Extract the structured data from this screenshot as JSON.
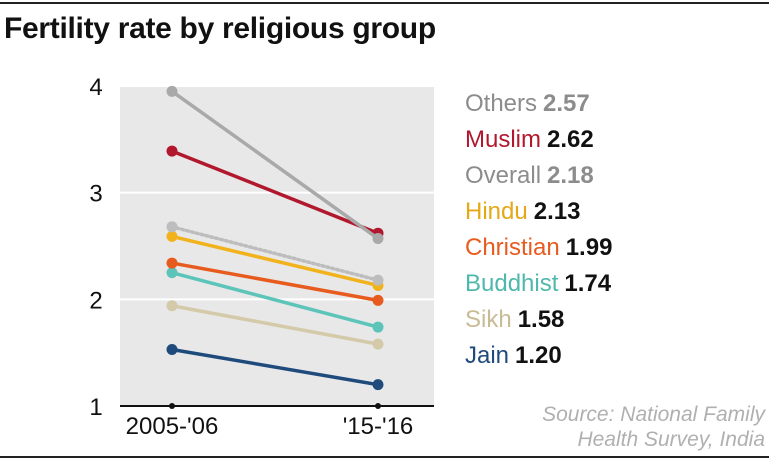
{
  "title": "Fertility rate by religious group",
  "source_lines": [
    "Source: National Family",
    "Health Survey, India"
  ],
  "chart_data": {
    "type": "line",
    "title": "Fertility rate by religious group",
    "xlabel": "",
    "ylabel": "",
    "categories": [
      "2005-'06",
      "'15-'16"
    ],
    "ylim": [
      1,
      4
    ],
    "yticks": [
      "1",
      "2",
      "3",
      "4"
    ],
    "series": [
      {
        "name": "Others",
        "values": [
          3.95,
          2.57
        ],
        "label_value": "2.57",
        "color": "#a9a9a9",
        "label_color": "#8c8c8c",
        "value_color": "#8c8c8c",
        "dashed": false
      },
      {
        "name": "Muslim",
        "values": [
          3.39,
          2.62
        ],
        "label_value": "2.62",
        "color": "#b1182e",
        "label_color": "#b1182e",
        "value_color": "#111111",
        "dashed": false
      },
      {
        "name": "Overall",
        "values": [
          2.68,
          2.18
        ],
        "label_value": "2.18",
        "color": "#bdbdbd",
        "label_color": "#8c8c8c",
        "value_color": "#8c8c8c",
        "dashed": true
      },
      {
        "name": "Hindu",
        "values": [
          2.59,
          2.13
        ],
        "label_value": "2.13",
        "color": "#f2b21c",
        "label_color": "#e6a817",
        "value_color": "#111111",
        "dashed": false
      },
      {
        "name": "Christian",
        "values": [
          2.34,
          1.99
        ],
        "label_value": "1.99",
        "color": "#e85b1e",
        "label_color": "#e85b1e",
        "value_color": "#111111",
        "dashed": false
      },
      {
        "name": "Buddhist",
        "values": [
          2.25,
          1.74
        ],
        "label_value": "1.74",
        "color": "#5cc4b9",
        "label_color": "#4fb8ac",
        "value_color": "#111111",
        "dashed": false
      },
      {
        "name": "Sikh",
        "values": [
          1.94,
          1.58
        ],
        "label_value": "1.58",
        "color": "#d4c9a8",
        "label_color": "#c9bb94",
        "value_color": "#111111",
        "dashed": false
      },
      {
        "name": "Jain",
        "values": [
          1.53,
          1.2
        ],
        "label_value": "1.20",
        "color": "#1f4a7c",
        "label_color": "#1f4a7c",
        "value_color": "#111111",
        "dashed": false
      }
    ]
  }
}
